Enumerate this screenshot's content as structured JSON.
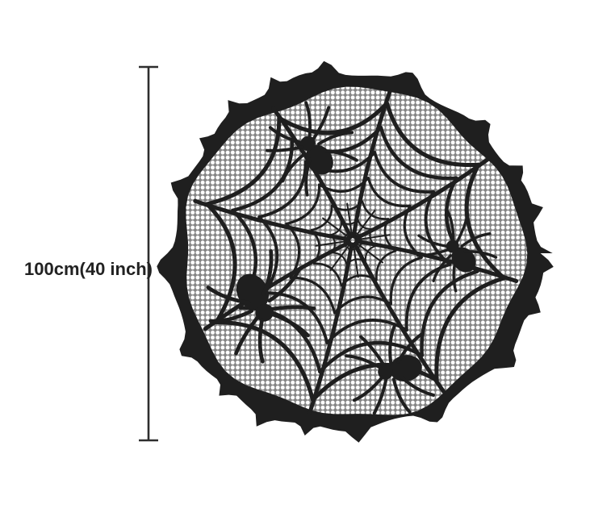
{
  "figure": {
    "dimension_label": "100cm(40 inch)",
    "subject": "round black lace spider web tablecloth",
    "spider_count": 4
  },
  "colors": {
    "background": "#ffffff",
    "ink": "#1f1f1f",
    "mesh_base": "#848484",
    "mesh_dot": "#ffffff",
    "dimension_line": "#2e2e2e",
    "label_text": "#222222"
  }
}
